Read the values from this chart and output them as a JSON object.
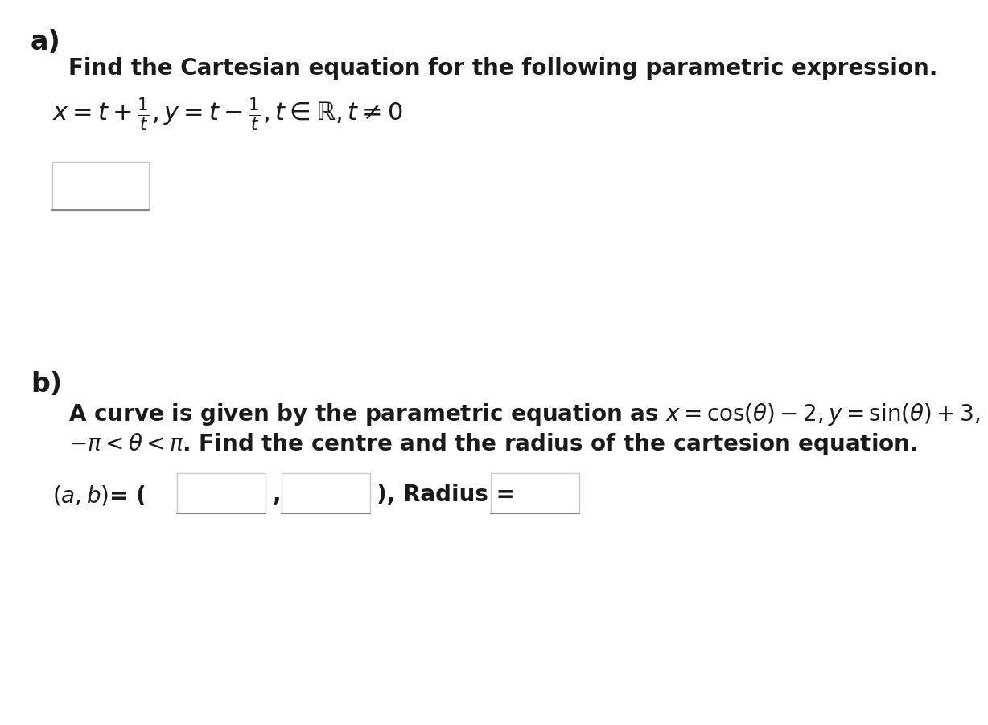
{
  "background_color": "#ffffff",
  "part_a_label": "a)",
  "part_b_label": "b)",
  "part_a_instruction": "Find the Cartesian equation for the following parametric expression.",
  "part_a_equation": "$x = t + \\frac{1}{t}, y = t - \\frac{1}{t}, t \\in \\mathbb{R}, t \\neq 0$",
  "part_b_line1": "A curve is given by the parametric equation as $x = \\cos(\\theta) - 2, y = \\sin(\\theta) + 3,$",
  "part_b_line2": "$-\\pi < \\theta < \\pi$. Find the centre and the radius of the cartesion equation.",
  "part_b_answer_label": "$(a, b)$= (",
  "part_b_answer_comma": ",",
  "part_b_answer_close": "), Radius =",
  "label_fontsize": 24,
  "instruction_fontsize": 20,
  "equation_fontsize": 22,
  "answer_fontsize": 20,
  "text_color": "#1a1a1a",
  "box_edge_color": "#c8c8c8",
  "box_bottom_color": "#888888"
}
